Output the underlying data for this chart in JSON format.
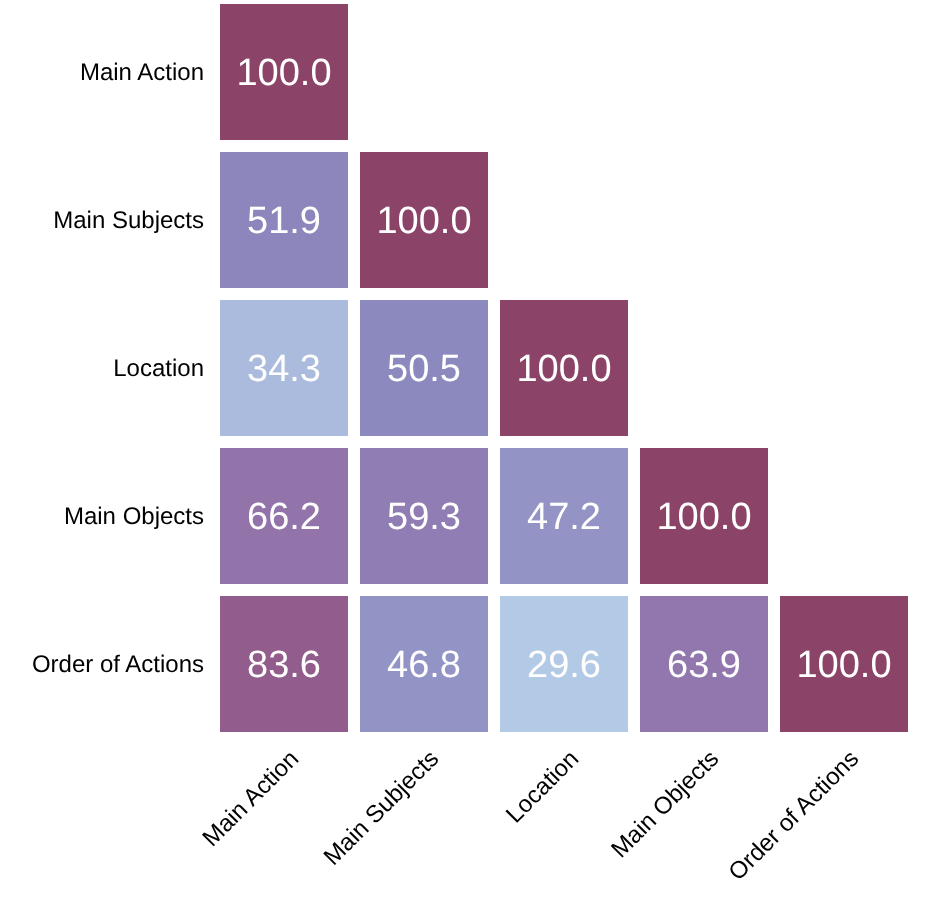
{
  "chart_data": {
    "type": "heatmap",
    "categories": [
      "Main Action",
      "Main Subjects",
      "Location",
      "Main Objects",
      "Order of Actions"
    ],
    "y_categories": [
      "Main Action",
      "Main Subjects",
      "Location",
      "Main Objects",
      "Order of Actions"
    ],
    "cells": [
      [
        100.0,
        null,
        null,
        null,
        null
      ],
      [
        51.9,
        100.0,
        null,
        null,
        null
      ],
      [
        34.3,
        50.5,
        100.0,
        null,
        null
      ],
      [
        66.2,
        59.3,
        47.2,
        100.0,
        null
      ],
      [
        83.6,
        46.8,
        29.6,
        63.9,
        100.0
      ]
    ],
    "cell_labels": [
      [
        "100.0",
        null,
        null,
        null,
        null
      ],
      [
        "51.9",
        "100.0",
        null,
        null,
        null
      ],
      [
        "34.3",
        "50.5",
        "100.0",
        null,
        null
      ],
      [
        "66.2",
        "59.3",
        "47.2",
        "100.0",
        null
      ],
      [
        "83.6",
        "46.8",
        "29.6",
        "63.9",
        "100.0"
      ]
    ]
  }
}
